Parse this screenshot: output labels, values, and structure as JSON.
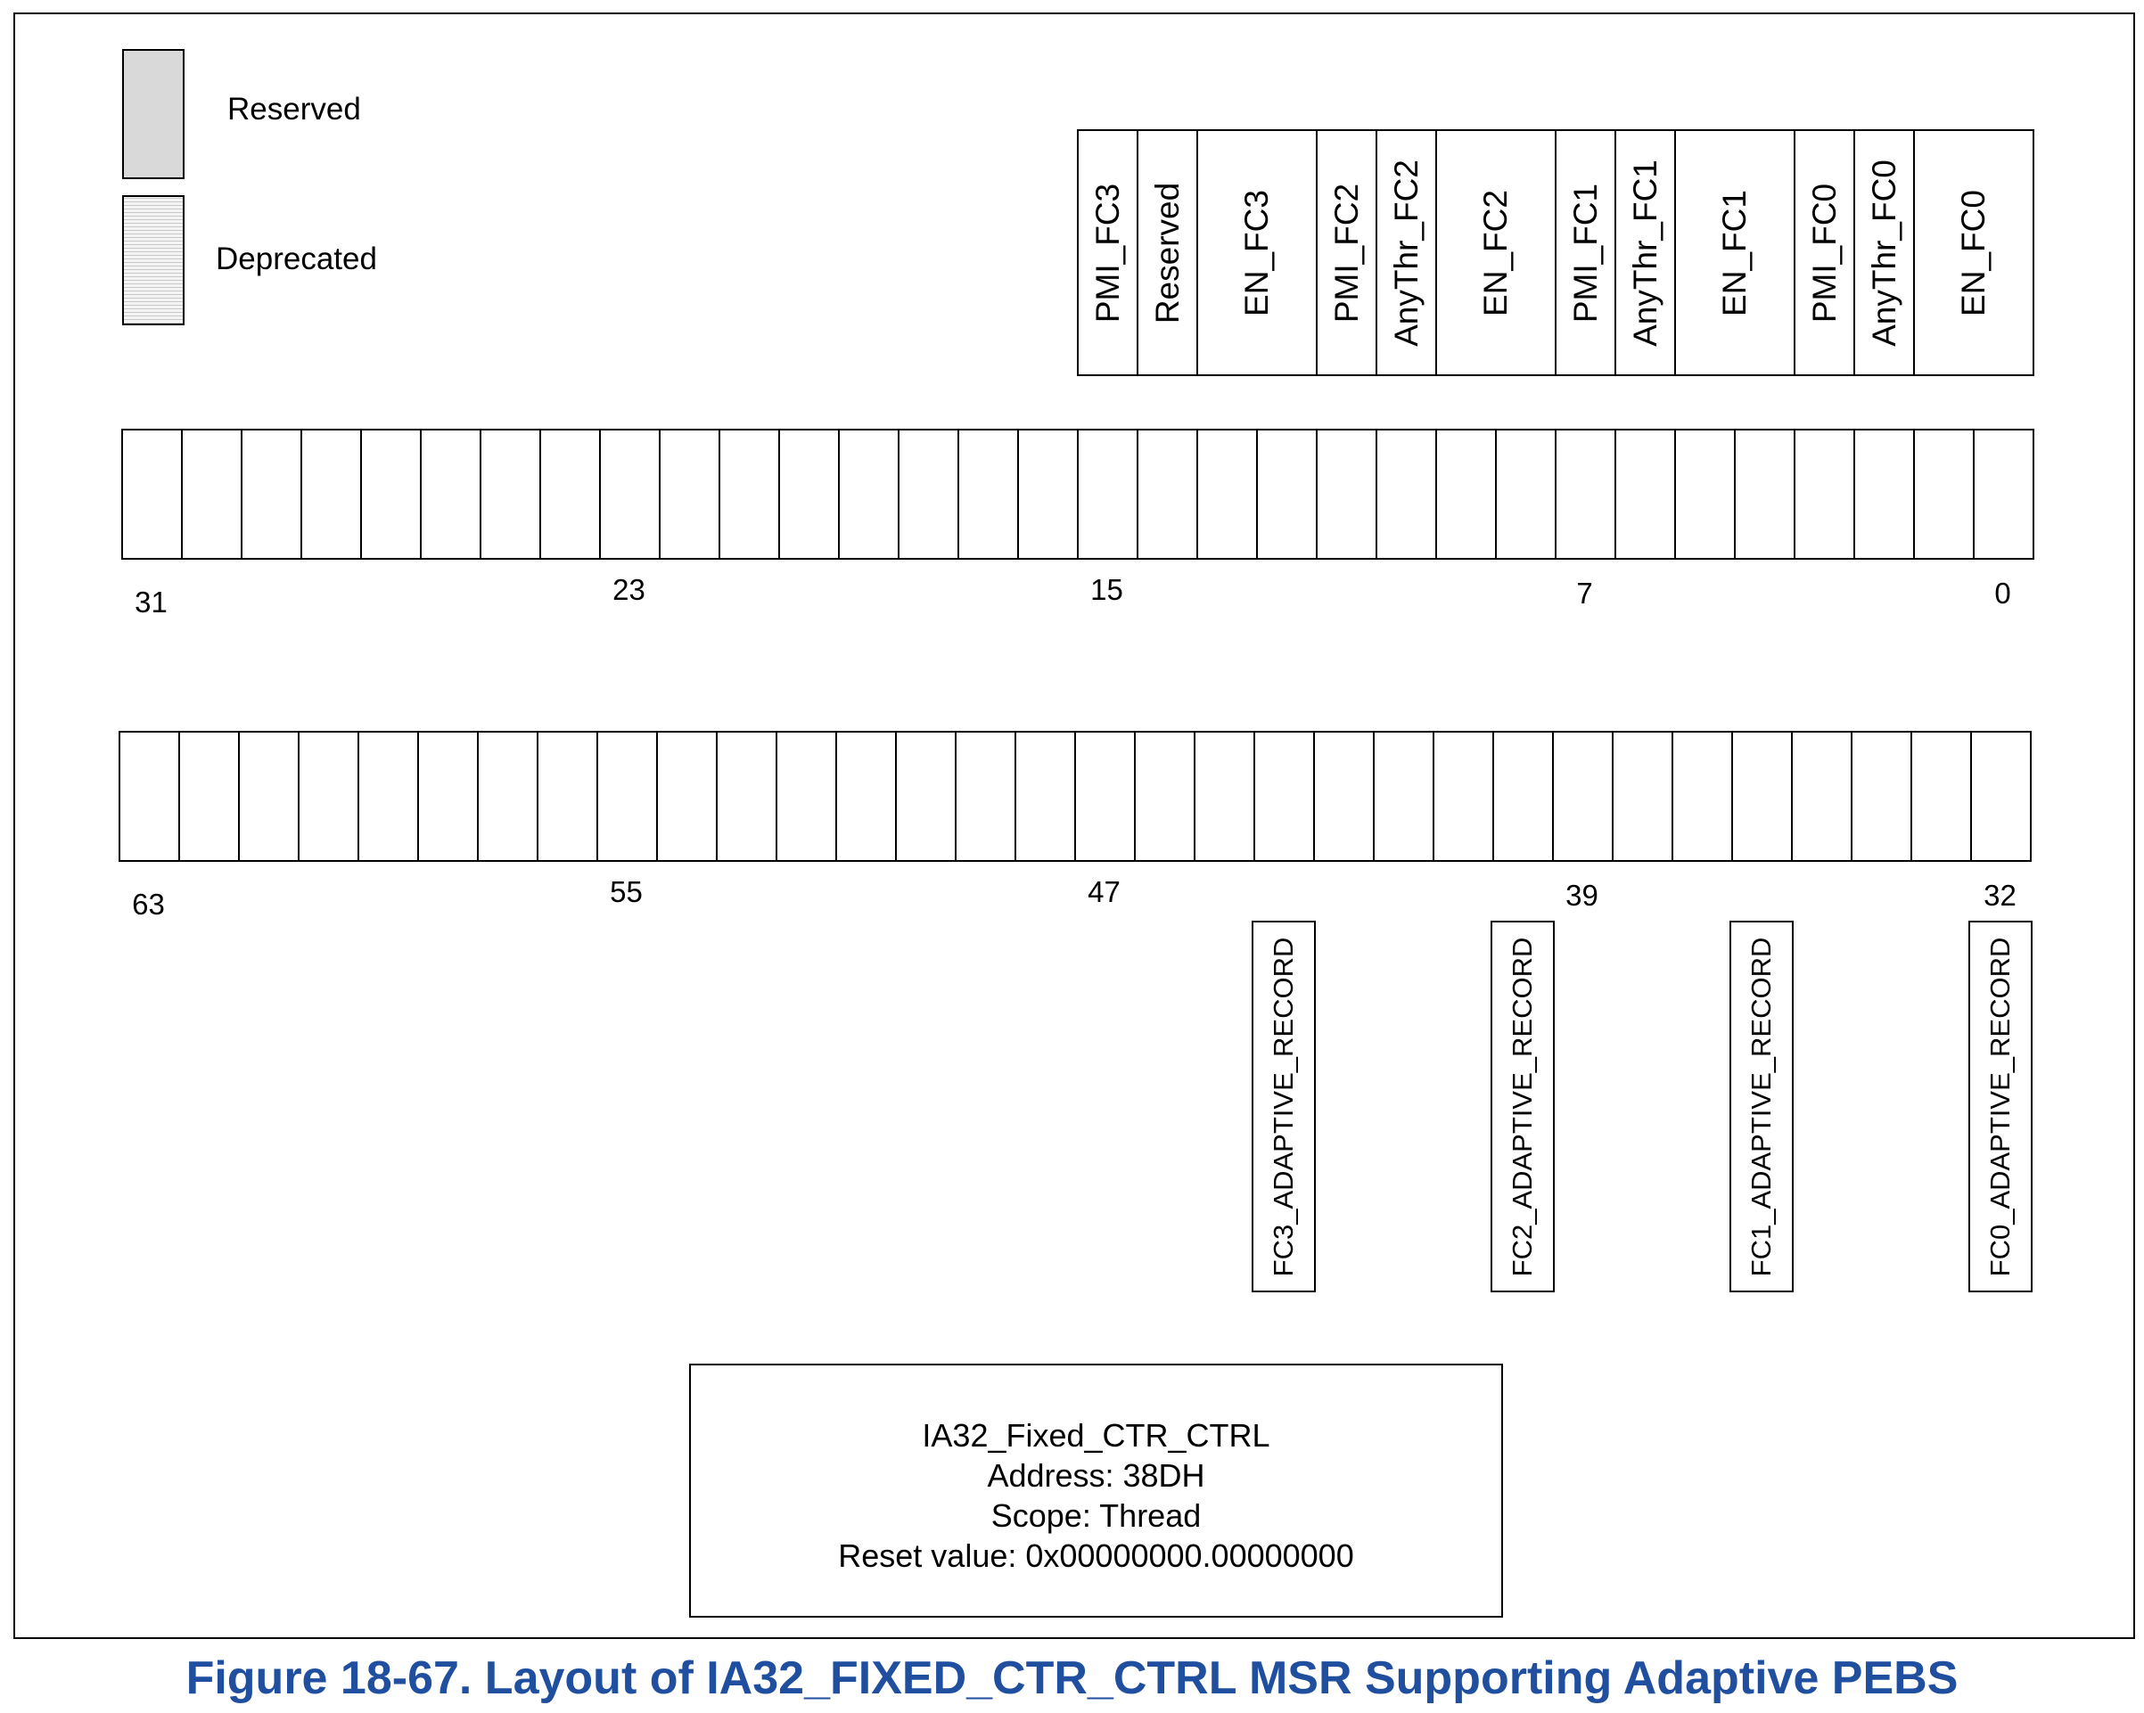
{
  "legend": {
    "reserved_label": "Reserved",
    "deprecated_label": "Deprecated"
  },
  "fields_low": [
    {
      "label": "PMI_FC3",
      "style": "normal"
    },
    {
      "label": "Reserved",
      "style": "reserved"
    },
    {
      "label": "EN_FC3",
      "style": "normal"
    },
    {
      "label": "PMI_FC2",
      "style": "normal"
    },
    {
      "label": "AnyThr_FC2",
      "style": "deprecated"
    },
    {
      "label": "EN_FC2",
      "style": "normal"
    },
    {
      "label": "PMI_FC1",
      "style": "normal"
    },
    {
      "label": "AnyThr_FC1",
      "style": "deprecated"
    },
    {
      "label": "EN_FC1",
      "style": "normal"
    },
    {
      "label": "PMI_FC0",
      "style": "normal"
    },
    {
      "label": "AnyThr_FC0",
      "style": "deprecated"
    },
    {
      "label": "EN_FC0",
      "style": "normal"
    }
  ],
  "low_register": {
    "bit_styles": [
      "reserved",
      "reserved",
      "reserved",
      "reserved",
      "reserved",
      "reserved",
      "reserved",
      "reserved",
      "reserved",
      "reserved",
      "reserved",
      "reserved",
      "reserved",
      "reserved",
      "reserved",
      "reserved",
      "normal",
      "reserved",
      "normal",
      "normal",
      "normal",
      "deprecated",
      "normal",
      "normal",
      "normal",
      "deprecated",
      "normal",
      "normal",
      "normal",
      "deprecated",
      "normal",
      "normal"
    ],
    "bit_numbers": [
      "31",
      "23",
      "15",
      "7",
      "0"
    ]
  },
  "high_register": {
    "bit_styles": [
      "reserved",
      "reserved",
      "reserved",
      "reserved",
      "reserved",
      "reserved",
      "reserved",
      "reserved",
      "reserved",
      "reserved",
      "reserved",
      "reserved",
      "reserved",
      "reserved",
      "reserved",
      "reserved",
      "reserved",
      "reserved",
      "reserved",
      "normal",
      "reserved",
      "reserved",
      "reserved",
      "normal",
      "reserved",
      "reserved",
      "reserved",
      "normal",
      "reserved",
      "reserved",
      "reserved",
      "normal"
    ],
    "bit_numbers": [
      "63",
      "55",
      "47",
      "39",
      "32"
    ]
  },
  "adaptive_fields": [
    "FC3_ADAPTIVE_RECORD",
    "FC2_ADAPTIVE_RECORD",
    "FC1_ADAPTIVE_RECORD",
    "FC0_ADAPTIVE_RECORD"
  ],
  "info": {
    "name": "IA32_Fixed_CTR_CTRL",
    "address": "Address: 38DH",
    "scope": "Scope: Thread",
    "reset": "Reset value: 0x00000000.00000000"
  },
  "caption": "Figure 18-67.  Layout of IA32_FIXED_CTR_CTRL MSR Supporting Adaptive PEBS"
}
